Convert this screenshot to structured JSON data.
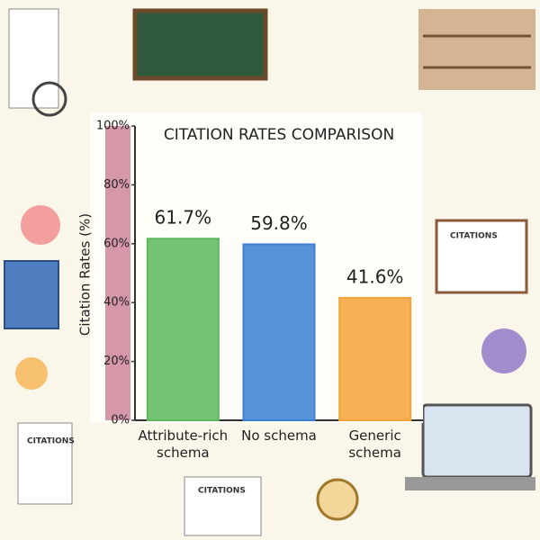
{
  "chart_data": {
    "type": "bar",
    "title": "CITATION RATES COMPARISON",
    "y_label": "Citation Rates (%)",
    "categories": [
      "Attribute-rich schema",
      "No schema",
      "Generic schema"
    ],
    "values": [
      61.7,
      59.8,
      41.6
    ],
    "value_labels": [
      "61.7%",
      "59.8%",
      "41.6%"
    ],
    "colors": [
      "#5cb85c",
      "#3b7fd4",
      "#f4a23a"
    ],
    "ylim": [
      0,
      100
    ],
    "yticks": [
      {
        "value": 0,
        "label": "0%"
      },
      {
        "value": 20,
        "label": "20%"
      },
      {
        "value": 40,
        "label": "40%"
      },
      {
        "value": 60,
        "label": "60%"
      },
      {
        "value": 80,
        "label": "80%"
      },
      {
        "value": 100,
        "label": "100%"
      }
    ]
  },
  "illustration_texts": [
    "CITATIONS",
    "CITATIONS",
    "CITATIONS"
  ]
}
